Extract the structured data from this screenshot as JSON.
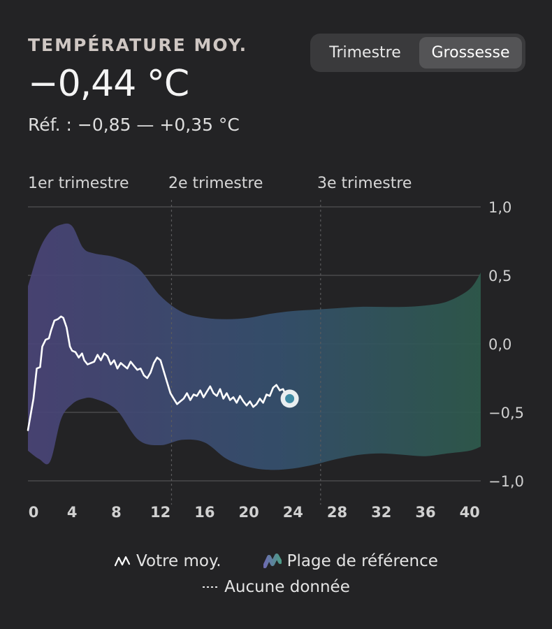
{
  "metric": {
    "label": "TEMPÉRATURE MOY.",
    "value": "−0,44 °C",
    "reference": "Réf. : −0,85 — +0,35 °C"
  },
  "toggle": {
    "options": [
      "Trimestre",
      "Grossesse"
    ],
    "selected": "Grossesse"
  },
  "chart_data": {
    "type": "line",
    "x_ticks": [
      0,
      4,
      8,
      12,
      16,
      20,
      24,
      28,
      32,
      36,
      40
    ],
    "x_tick_labels": [
      "0",
      "4",
      "8",
      "12",
      "16",
      "20",
      "24",
      "28",
      "32",
      "36",
      "40"
    ],
    "xlim": [
      0,
      41
    ],
    "y_ticks": [
      1.0,
      0.5,
      0.0,
      -0.5,
      -1.0
    ],
    "y_tick_labels": [
      "1,0",
      "0,5",
      "0,0",
      "−0,5",
      "−1,0"
    ],
    "ylim": [
      -1.0,
      1.0
    ],
    "trimesters": [
      {
        "label": "1er trimestre",
        "start": 0
      },
      {
        "label": "2e trimestre",
        "start": 13
      },
      {
        "label": "3e trimestre",
        "start": 26.5
      }
    ],
    "trimester_dividers": [
      13,
      26.5
    ],
    "grid": true,
    "colors": {
      "band_start": "#4a4477",
      "band_mid": "#35506e",
      "band_end": "#2e5a4c",
      "line": "#ffffff",
      "grid": "#4a4a4c",
      "axis_text": "#d0d0d0",
      "marker_fill": "#3f8aa3"
    },
    "series": [
      {
        "name": "Votre moy.",
        "kind": "line",
        "x": [
          0,
          0.5,
          0.8,
          1.1,
          1.3,
          1.6,
          1.9,
          2.1,
          2.4,
          2.7,
          3.0,
          3.2,
          3.5,
          3.8,
          4.0,
          4.3,
          4.6,
          4.9,
          5.1,
          5.4,
          5.7,
          6.0,
          6.3,
          6.6,
          6.9,
          7.2,
          7.5,
          7.8,
          8.1,
          8.4,
          8.7,
          9.0,
          9.3,
          9.6,
          9.9,
          10.2,
          10.5,
          10.8,
          11.1,
          11.4,
          11.7,
          12.0,
          12.3,
          12.6,
          12.9,
          13.2,
          13.5,
          13.8,
          14.1,
          14.4,
          14.7,
          15.0,
          15.3,
          15.6,
          15.9,
          16.2,
          16.5,
          16.8,
          17.1,
          17.4,
          17.7,
          18.0,
          18.3,
          18.6,
          18.9,
          19.2,
          19.5,
          19.8,
          20.1,
          20.4,
          20.7,
          21.0,
          21.3,
          21.6,
          21.9,
          22.2,
          22.5,
          22.8,
          23.1,
          23.4,
          23.7
        ],
        "values": [
          -0.63,
          -0.4,
          -0.18,
          -0.17,
          -0.02,
          0.03,
          0.04,
          0.1,
          0.17,
          0.18,
          0.2,
          0.19,
          0.12,
          -0.02,
          -0.05,
          -0.06,
          -0.1,
          -0.07,
          -0.12,
          -0.15,
          -0.14,
          -0.13,
          -0.08,
          -0.12,
          -0.07,
          -0.09,
          -0.15,
          -0.12,
          -0.18,
          -0.14,
          -0.16,
          -0.18,
          -0.13,
          -0.16,
          -0.19,
          -0.18,
          -0.23,
          -0.25,
          -0.21,
          -0.14,
          -0.1,
          -0.12,
          -0.2,
          -0.28,
          -0.36,
          -0.4,
          -0.44,
          -0.42,
          -0.4,
          -0.36,
          -0.41,
          -0.37,
          -0.38,
          -0.34,
          -0.39,
          -0.35,
          -0.31,
          -0.36,
          -0.38,
          -0.33,
          -0.4,
          -0.36,
          -0.41,
          -0.39,
          -0.43,
          -0.38,
          -0.42,
          -0.45,
          -0.42,
          -0.46,
          -0.44,
          -0.4,
          -0.43,
          -0.37,
          -0.38,
          -0.32,
          -0.3,
          -0.34,
          -0.33,
          -0.38,
          -0.4
        ]
      },
      {
        "name": "Plage de référence",
        "kind": "band",
        "x": [
          0,
          1,
          2,
          3,
          4,
          5,
          6,
          8,
          10,
          12,
          14,
          16,
          18,
          20,
          22,
          24,
          26,
          28,
          30,
          32,
          34,
          36,
          38,
          40,
          41
        ],
        "upper": [
          0.42,
          0.68,
          0.82,
          0.87,
          0.86,
          0.7,
          0.66,
          0.63,
          0.55,
          0.35,
          0.23,
          0.19,
          0.18,
          0.19,
          0.22,
          0.24,
          0.25,
          0.26,
          0.27,
          0.27,
          0.27,
          0.28,
          0.31,
          0.4,
          0.52
        ],
        "lower": [
          -0.78,
          -0.84,
          -0.86,
          -0.55,
          -0.44,
          -0.4,
          -0.4,
          -0.48,
          -0.7,
          -0.74,
          -0.7,
          -0.72,
          -0.84,
          -0.9,
          -0.92,
          -0.91,
          -0.88,
          -0.84,
          -0.81,
          -0.8,
          -0.81,
          -0.82,
          -0.8,
          -0.78,
          -0.75
        ]
      }
    ],
    "current_point": {
      "x": 23.7,
      "y": -0.4
    }
  },
  "legend": {
    "line": {
      "label": "Votre moy.",
      "icon": "wave-line-icon"
    },
    "band": {
      "label": "Plage de référence",
      "icon": "wave-band-icon"
    },
    "none": {
      "label": "Aucune donnée",
      "icon": "dotted-line-icon"
    }
  }
}
